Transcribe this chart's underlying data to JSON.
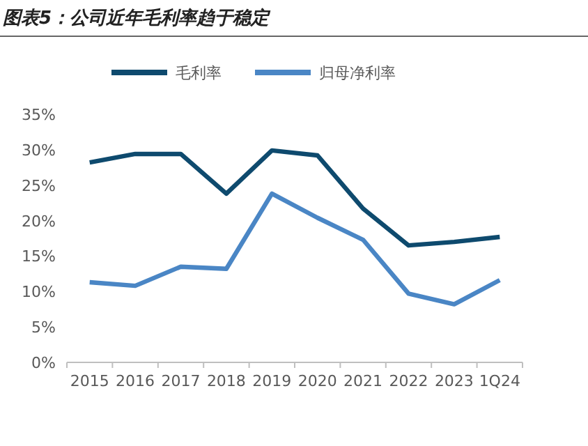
{
  "chart_data": {
    "type": "line",
    "title": "图表5：公司近年毛利率趋于稳定",
    "categories": [
      "2015",
      "2016",
      "2017",
      "2018",
      "2019",
      "2020",
      "2021",
      "2022",
      "2023",
      "1Q24"
    ],
    "series": [
      {
        "name": "毛利率",
        "color": "#0e4a6e",
        "values": [
          28.2,
          29.4,
          29.4,
          23.8,
          29.9,
          29.2,
          21.7,
          16.5,
          17.0,
          17.7
        ]
      },
      {
        "name": "归母净利率",
        "color": "#4a86c5",
        "values": [
          11.3,
          10.8,
          13.5,
          13.2,
          23.8,
          20.4,
          17.3,
          9.7,
          8.2,
          11.6
        ]
      }
    ],
    "ylim": [
      0,
      35
    ],
    "yticks": [
      {
        "value": 0,
        "label": "0%"
      },
      {
        "value": 5,
        "label": "5%"
      },
      {
        "value": 10,
        "label": "10%"
      },
      {
        "value": 15,
        "label": "15%"
      },
      {
        "value": 20,
        "label": "20%"
      },
      {
        "value": 25,
        "label": "25%"
      },
      {
        "value": 30,
        "label": "30%"
      },
      {
        "value": 35,
        "label": "35%"
      }
    ],
    "grid": false,
    "legend": "top",
    "marker": "none",
    "line_style": "solid"
  }
}
